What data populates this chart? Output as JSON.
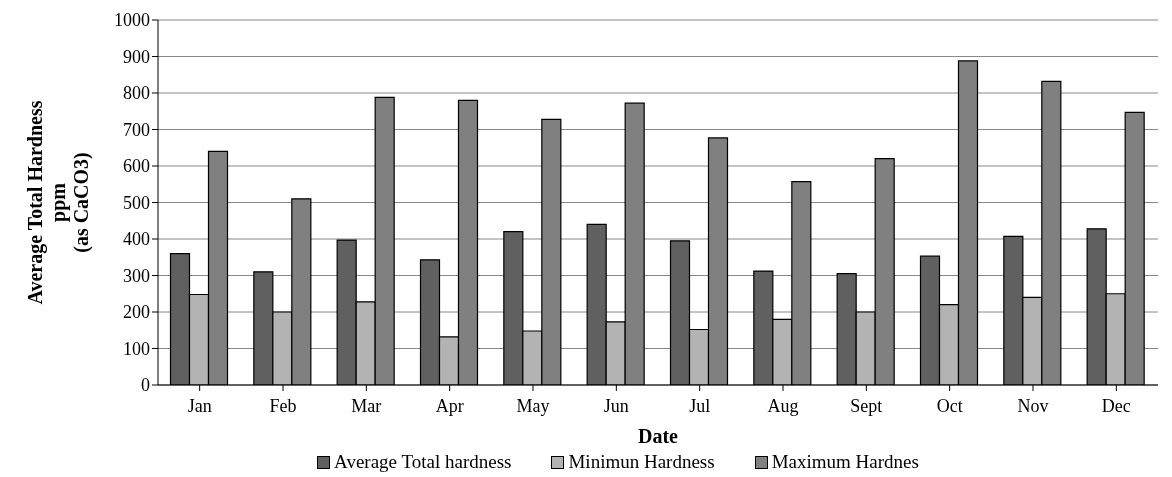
{
  "chart_data": {
    "type": "bar",
    "xlabel": "Date",
    "ylabel": "Average Total Hardness\nppm\n(as CaCO3)",
    "categories": [
      "Jan",
      "Feb",
      "Mar",
      "Apr",
      "May",
      "Jun",
      "Jul",
      "Aug",
      "Sept",
      "Oct",
      "Nov",
      "Dec"
    ],
    "series": [
      {
        "name": "Average Total hardness",
        "color": "#606060",
        "values": [
          360,
          310,
          397,
          343,
          420,
          440,
          395,
          312,
          305,
          353,
          407,
          428
        ]
      },
      {
        "name": "Minimun Hardness",
        "color": "#b3b3b3",
        "values": [
          248,
          200,
          228,
          132,
          148,
          173,
          152,
          180,
          200,
          220,
          240,
          250
        ]
      },
      {
        "name": "Maximum Hardnes",
        "color": "#808080",
        "values": [
          640,
          510,
          788,
          780,
          728,
          772,
          677,
          557,
          620,
          888,
          832,
          747
        ]
      }
    ],
    "ylim": [
      0,
      1000
    ],
    "yticks": [
      0,
      100,
      200,
      300,
      400,
      500,
      600,
      700,
      800,
      900,
      1000
    ],
    "grid": "y",
    "legend": "bottom"
  }
}
